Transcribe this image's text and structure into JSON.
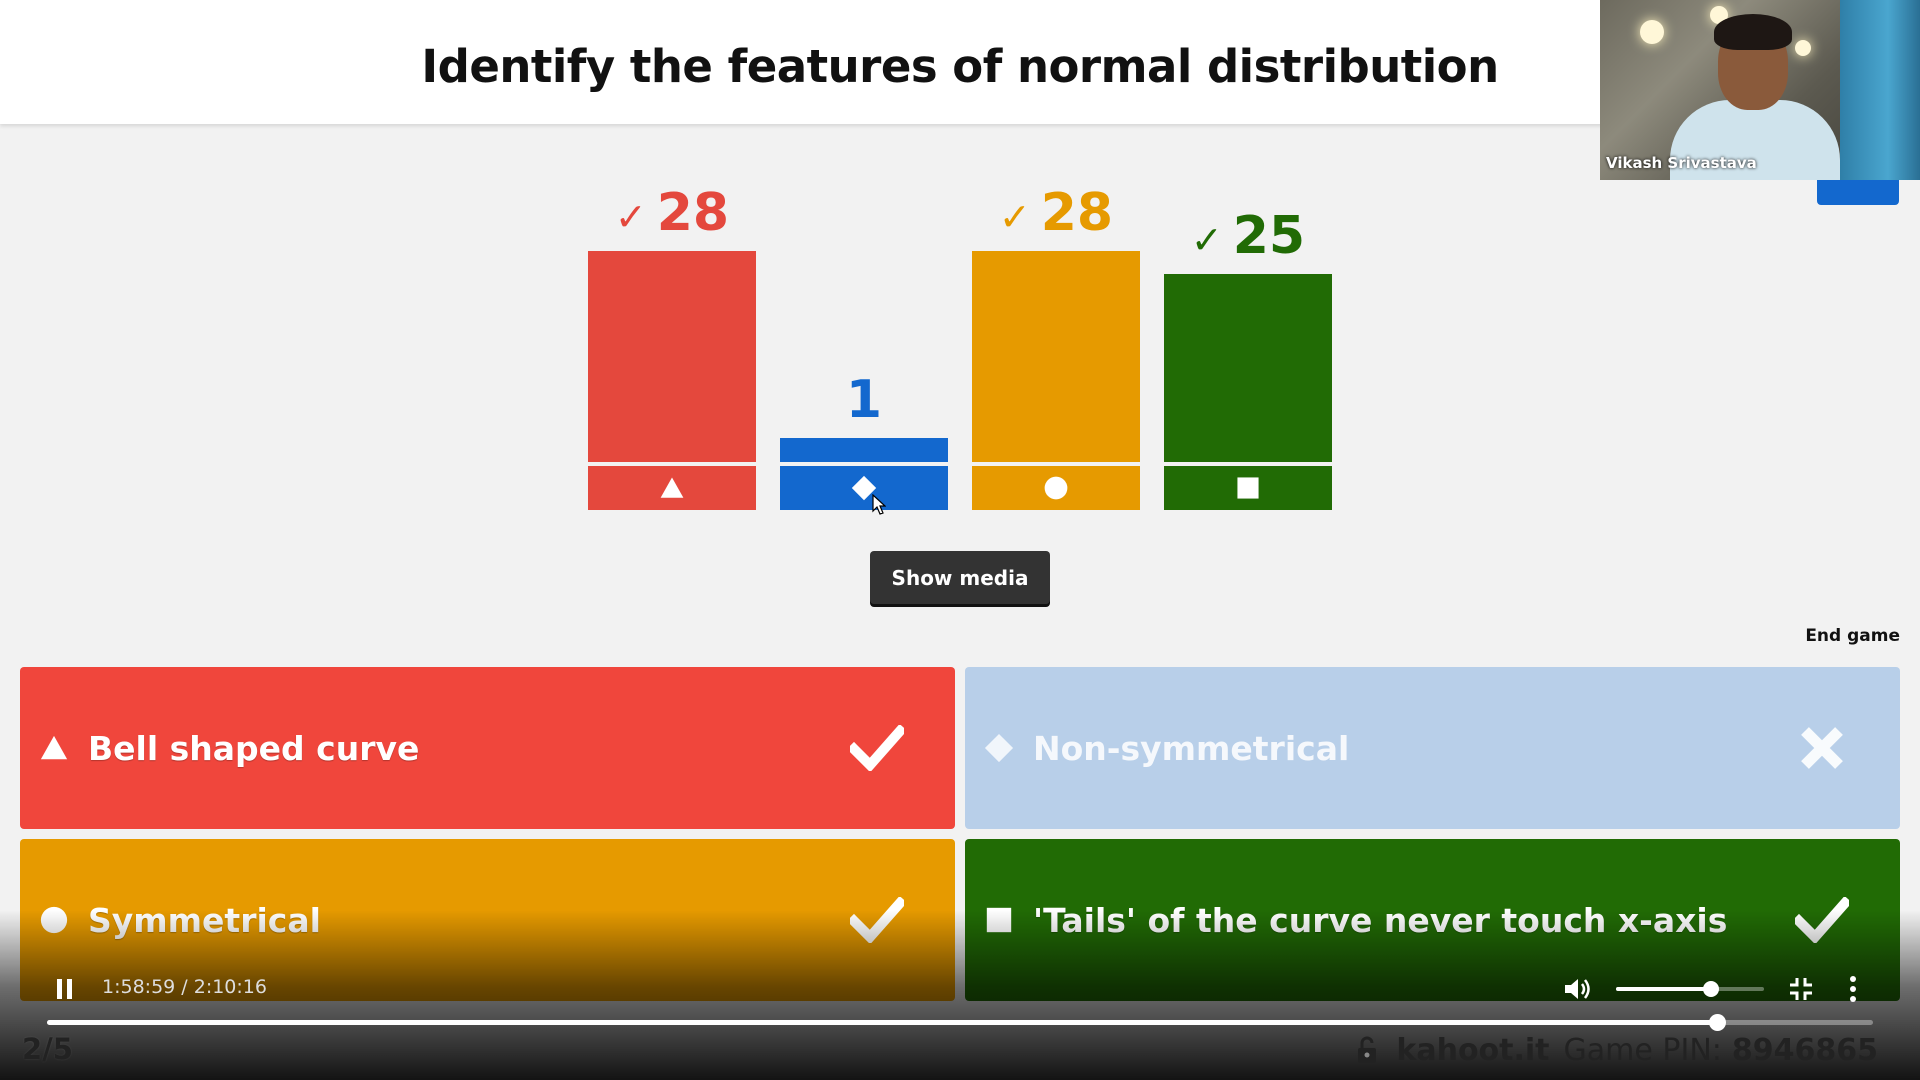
{
  "question": {
    "title": "Identify the features of normal distribution"
  },
  "webcam": {
    "name": "Vikash Srivastava"
  },
  "chart_data": {
    "type": "bar",
    "categories": [
      "triangle",
      "diamond",
      "circle",
      "square"
    ],
    "values": [
      28,
      1,
      28,
      25
    ],
    "correct": [
      true,
      false,
      true,
      true
    ],
    "colors": [
      "#e4483d",
      "#1368ce",
      "#e69a00",
      "#216b05"
    ],
    "labels": [
      "28",
      "1",
      "28",
      "25"
    ],
    "ylim": [
      0,
      28
    ]
  },
  "buttons": {
    "show_media": "Show media",
    "end_game": "End game"
  },
  "answers": [
    {
      "text": "Bell shaped curve",
      "shape": "triangle",
      "correct": true,
      "color": "#f0463c"
    },
    {
      "text": "Non-symmetrical",
      "shape": "diamond",
      "correct": false,
      "color": "#b8cfe9"
    },
    {
      "text": "Symmetrical",
      "shape": "circle",
      "correct": true,
      "color": "#e69a00"
    },
    {
      "text": "'Tails' of the curve never touch x-axis",
      "shape": "square",
      "correct": true,
      "color": "#216b05"
    }
  ],
  "video": {
    "time": "1:58:59 / 2:10:16",
    "progress": 0.9145,
    "volume": 0.64,
    "play_state": "playing"
  },
  "footer": {
    "question_progress": "2/5",
    "brand": "kahoot.it",
    "pin_label": "Game PIN:",
    "pin": "8946865"
  },
  "icons": {
    "pause": "pause-icon",
    "volume": "volume-icon",
    "exit_fullscreen": "exit-fullscreen-icon",
    "more": "more-vert-icon",
    "lock": "lock-icon"
  }
}
